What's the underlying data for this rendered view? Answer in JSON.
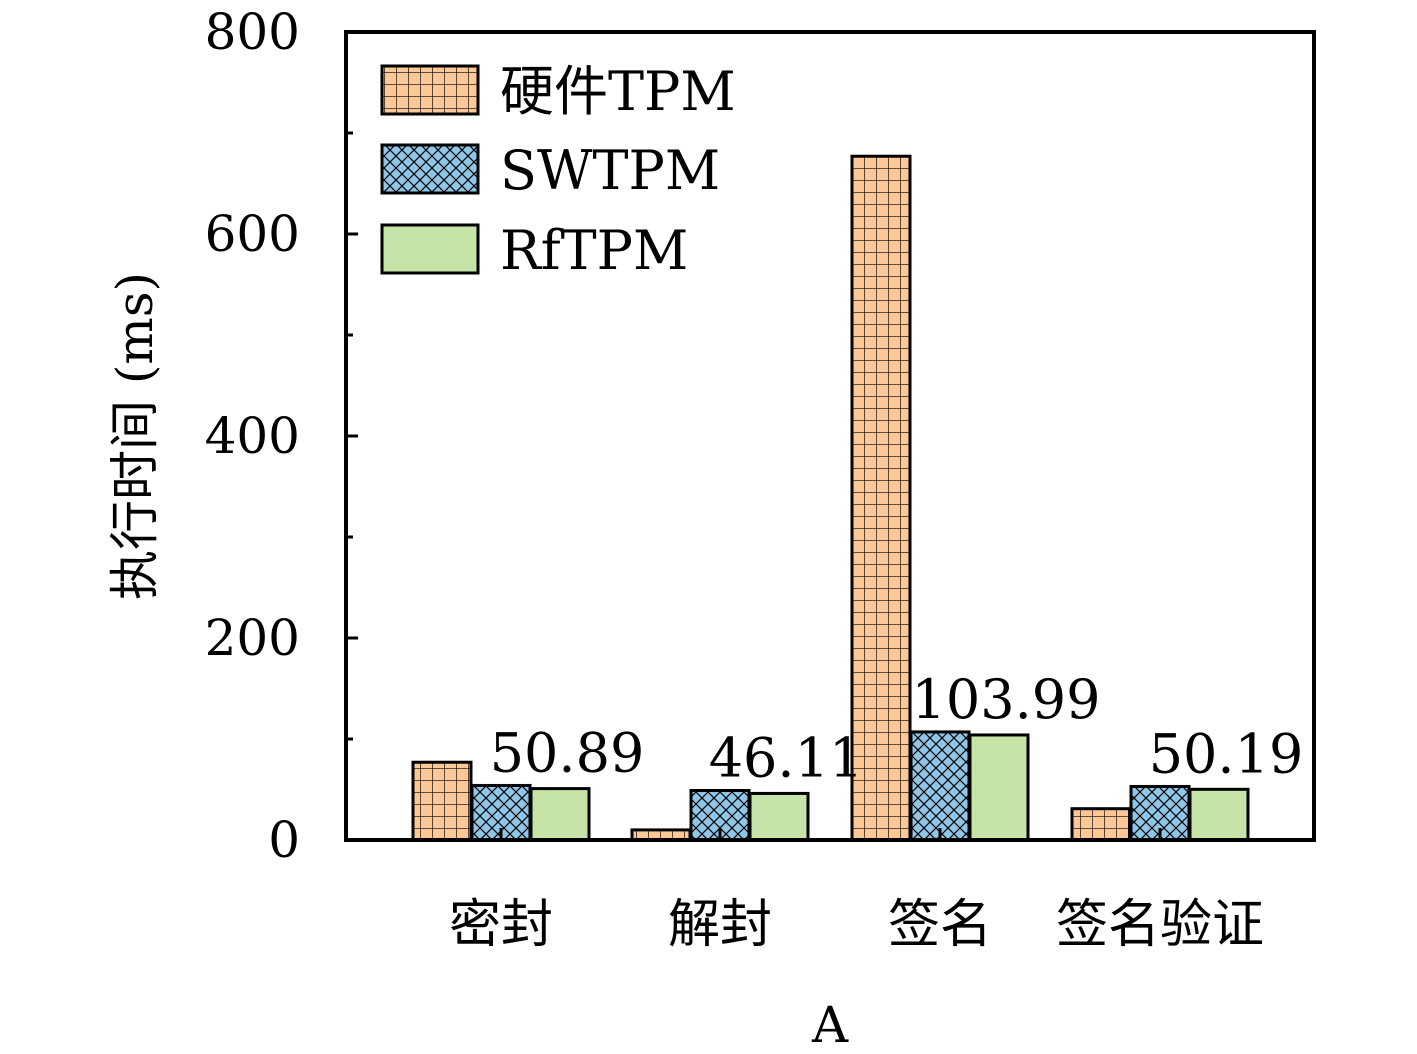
{
  "chart_data": {
    "type": "bar",
    "title": "",
    "xlabel": "A",
    "ylabel": "执行时间 (ms)",
    "ylim": [
      0,
      800
    ],
    "yticks": [
      "0",
      "200",
      "400",
      "600",
      "800"
    ],
    "grid": false,
    "legend_position": "top-left",
    "categories": [
      "密封",
      "解封",
      "签名",
      "签名验证"
    ],
    "series": [
      {
        "name": "硬件TPM",
        "values": [
          77,
          10,
          677,
          31
        ],
        "color": "#FDC896",
        "pattern": "grid"
      },
      {
        "name": "SWTPM",
        "values": [
          54,
          49,
          107,
          53
        ],
        "color": "#8EC7E8",
        "pattern": "crosshatch"
      },
      {
        "name": "RfTPM",
        "values": [
          50.89,
          46.11,
          103.99,
          50.19
        ],
        "color": "#C6E3A8",
        "pattern": "solid"
      }
    ],
    "data_labels": [
      "50.89",
      "46.11",
      "103.99",
      "50.19"
    ]
  }
}
